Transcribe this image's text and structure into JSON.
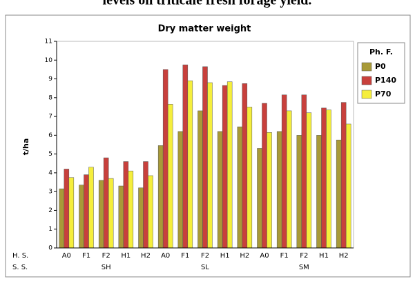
{
  "caption": "levels on triticale fresh forage yield.",
  "chart_data": {
    "type": "bar",
    "title": "Dry matter weight",
    "y_label": "t/ha",
    "row_labels": [
      "H. S.",
      "S. S."
    ],
    "categories": [
      "A0",
      "F1",
      "F2",
      "H1",
      "H2",
      "A0",
      "F1",
      "F2",
      "H1",
      "H2",
      "A0",
      "F1",
      "F2",
      "H1",
      "H2"
    ],
    "groups": [
      "SH",
      "SL",
      "SM"
    ],
    "legend_title": "Ph. F.",
    "legend": "right",
    "series": [
      {
        "name": "P0",
        "color": "#a89a38",
        "values": [
          3.15,
          3.35,
          3.6,
          3.3,
          3.2,
          5.45,
          6.2,
          7.3,
          6.2,
          6.45,
          5.3,
          6.2,
          6.0,
          6.0,
          5.75
        ]
      },
      {
        "name": "P140",
        "color": "#c8403c",
        "values": [
          4.2,
          3.9,
          4.8,
          4.6,
          4.6,
          9.5,
          9.75,
          9.65,
          8.65,
          8.75,
          7.7,
          8.15,
          8.15,
          7.45,
          7.75
        ]
      },
      {
        "name": "P70",
        "color": "#f5ee3c",
        "values": [
          3.75,
          4.3,
          3.7,
          4.1,
          3.85,
          7.65,
          8.9,
          8.8,
          8.85,
          7.5,
          6.15,
          7.3,
          7.2,
          7.35,
          6.6
        ]
      }
    ],
    "ylim": [
      0,
      11
    ],
    "yticks": [
      0,
      1,
      2,
      3,
      4,
      5,
      6,
      7,
      8,
      9,
      10,
      11
    ]
  }
}
